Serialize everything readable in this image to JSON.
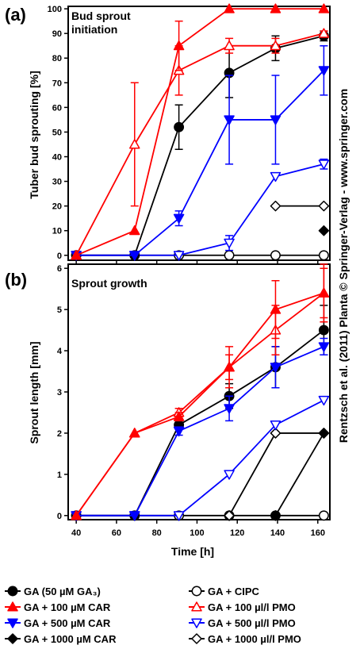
{
  "side_note": "Rentzsch et al. (2011) Planta © Springer-Verlag - www.springer.com",
  "legend": [
    {
      "series": "s0",
      "label": "GA (50 µM GA₃)"
    },
    {
      "series": "s4",
      "label": "GA + CIPC"
    },
    {
      "series": "s1",
      "label": "GA + 100 µM CAR"
    },
    {
      "series": "s5",
      "label": "GA + 100 µl/l PMO"
    },
    {
      "series": "s2",
      "label": "GA + 500 µM CAR"
    },
    {
      "series": "s6",
      "label": "GA + 500 µl/l PMO"
    },
    {
      "series": "s3",
      "label": "GA + 1000 µM CAR"
    },
    {
      "series": "s7",
      "label": "GA + 1000 µl/l PMO"
    }
  ],
  "series_style": {
    "s0": {
      "color": "#000000",
      "marker": "circle",
      "filled": true
    },
    "s1": {
      "color": "#ff0000",
      "marker": "triangle-up",
      "filled": true
    },
    "s2": {
      "color": "#0000ff",
      "marker": "triangle-down",
      "filled": true
    },
    "s3": {
      "color": "#000000",
      "marker": "diamond",
      "filled": true
    },
    "s4": {
      "color": "#000000",
      "marker": "circle",
      "filled": false
    },
    "s5": {
      "color": "#ff0000",
      "marker": "triangle-up",
      "filled": false
    },
    "s6": {
      "color": "#0000ff",
      "marker": "triangle-down",
      "filled": false
    },
    "s7": {
      "color": "#000000",
      "marker": "diamond",
      "filled": false
    }
  },
  "chart_data": [
    {
      "panel": "(a)",
      "type": "line",
      "title": "Bud sprout initiation",
      "xlabel": "",
      "ylabel": "Tuber bud sprouting [%]",
      "x": [
        40,
        69,
        91,
        116,
        139,
        163
      ],
      "xlim": [
        36,
        166
      ],
      "ylim": [
        -2,
        101
      ],
      "yticks": [
        0,
        10,
        20,
        30,
        40,
        50,
        60,
        70,
        80,
        90,
        100
      ],
      "xticks": [],
      "series": [
        {
          "key": "s0",
          "x": [
            40,
            69,
            91,
            116,
            139,
            163
          ],
          "values": [
            0,
            0,
            52,
            74,
            84,
            89
          ],
          "err": [
            0,
            0,
            9,
            10,
            5,
            2
          ]
        },
        {
          "key": "s1",
          "x": [
            40,
            69,
            91,
            116,
            139,
            163
          ],
          "values": [
            0,
            10,
            85,
            100,
            100,
            100
          ],
          "err": [
            0,
            0,
            10,
            0,
            0,
            0
          ]
        },
        {
          "key": "s2",
          "x": [
            40,
            69,
            91,
            116,
            139,
            163
          ],
          "values": [
            0,
            0,
            15,
            55,
            55,
            75
          ],
          "err": [
            0,
            0,
            3,
            18,
            18,
            10
          ]
        },
        {
          "key": "s3",
          "x": [
            163
          ],
          "values": [
            10
          ],
          "err": [
            0
          ]
        },
        {
          "key": "s4",
          "x": [
            40,
            69,
            91,
            116,
            139,
            163
          ],
          "values": [
            0,
            0,
            0,
            0,
            0,
            0
          ],
          "err": [
            0,
            0,
            0,
            0,
            0,
            0
          ]
        },
        {
          "key": "s5",
          "x": [
            40,
            69,
            91,
            116,
            139,
            163
          ],
          "values": [
            0,
            45,
            75,
            85,
            85,
            90
          ],
          "err": [
            0,
            25,
            10,
            3,
            3,
            1
          ]
        },
        {
          "key": "s6",
          "x": [
            40,
            69,
            91,
            116,
            139,
            163
          ],
          "values": [
            0,
            0,
            0,
            5,
            32,
            37
          ],
          "err": [
            0,
            0,
            0,
            3,
            0,
            2
          ]
        },
        {
          "key": "s7",
          "x": [
            139,
            163
          ],
          "values": [
            20,
            20
          ],
          "err": [
            0,
            0
          ]
        }
      ]
    },
    {
      "panel": "(b)",
      "type": "line",
      "title": "Sprout growth",
      "xlabel": "Time [h]",
      "ylabel": "Sprout length [mm]",
      "x": [
        40,
        69,
        91,
        116,
        139,
        163
      ],
      "xlim": [
        36,
        166
      ],
      "ylim": [
        -0.1,
        6.1
      ],
      "yticks": [
        0,
        1,
        2,
        3,
        4,
        5,
        6
      ],
      "xticks": [
        40,
        60,
        80,
        100,
        120,
        140,
        160
      ],
      "series": [
        {
          "key": "s0",
          "x": [
            40,
            69,
            91,
            116,
            139,
            163
          ],
          "values": [
            0,
            0,
            2.2,
            2.9,
            3.6,
            4.5
          ],
          "err": [
            0,
            0,
            0.1,
            0.3,
            0.5,
            0.6
          ]
        },
        {
          "key": "s1",
          "x": [
            40,
            69,
            91,
            116,
            139,
            163
          ],
          "values": [
            0,
            2.0,
            2.4,
            3.6,
            5.0,
            5.4
          ],
          "err": [
            0,
            0,
            0.1,
            0.3,
            0.7,
            0.6
          ]
        },
        {
          "key": "s2",
          "x": [
            40,
            69,
            91,
            116,
            139,
            163
          ],
          "values": [
            0,
            0,
            2.05,
            2.6,
            3.6,
            4.1
          ],
          "err": [
            0,
            0,
            0.1,
            0.3,
            0.5,
            0.2
          ]
        },
        {
          "key": "s3",
          "x": [
            139,
            163
          ],
          "values": [
            0,
            2.0
          ],
          "err": [
            0,
            0
          ]
        },
        {
          "key": "s4",
          "x": [
            40,
            69,
            91,
            116,
            139,
            163
          ],
          "values": [
            0,
            0,
            0,
            0,
            0,
            0
          ],
          "err": [
            0,
            0,
            0,
            0,
            0,
            0
          ]
        },
        {
          "key": "s5",
          "x": [
            40,
            69,
            91,
            116,
            139,
            163
          ],
          "values": [
            0,
            2.0,
            2.5,
            3.6,
            4.5,
            5.4
          ],
          "err": [
            0,
            0,
            0.1,
            0.5,
            0.6,
            0.7
          ]
        },
        {
          "key": "s6",
          "x": [
            40,
            69,
            91,
            116,
            139,
            163
          ],
          "values": [
            0,
            0,
            0,
            1.0,
            2.2,
            2.8
          ],
          "err": [
            0,
            0,
            0,
            0,
            0,
            0
          ]
        },
        {
          "key": "s7",
          "x": [
            116,
            139,
            163
          ],
          "values": [
            0,
            2.0,
            2.0
          ],
          "err": [
            0,
            0,
            0
          ]
        }
      ]
    }
  ]
}
